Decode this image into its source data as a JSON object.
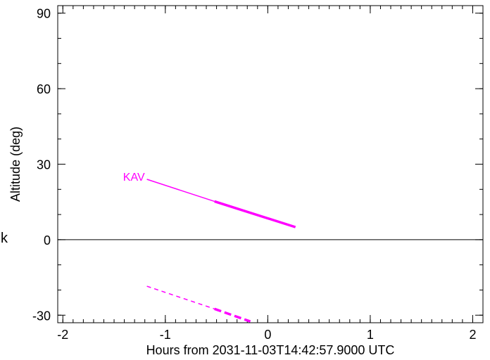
{
  "chart_data": {
    "type": "line",
    "title": "",
    "xlabel": "Hours from 2031-11-03T14:42:57.9000 UTC",
    "ylabel": "Altitude (deg)",
    "xlim": [
      -2.05,
      2.1
    ],
    "ylim": [
      -33,
      93
    ],
    "x_ticks": [
      -2,
      -1,
      0,
      1,
      2
    ],
    "x_tick_labels": [
      "-2",
      "-1",
      "0",
      "1",
      "2"
    ],
    "y_ticks": [
      -30,
      0,
      30,
      60,
      90
    ],
    "y_tick_labels": [
      "-30",
      "0",
      "30",
      "60",
      "90"
    ],
    "y_minor_step": 10,
    "x_minor_step": 0.1,
    "horizon_line": 0,
    "grid": false,
    "series": [
      {
        "name": "KAV",
        "color": "#ff00ff",
        "segments": [
          {
            "style": "solid-thin",
            "x": [
              -1.18,
              -0.52
            ],
            "y": [
              24.0,
              15.2
            ]
          },
          {
            "style": "solid-thick",
            "x": [
              -0.52,
              0.27
            ],
            "y": [
              15.2,
              5.0
            ]
          },
          {
            "style": "dashed-thin",
            "x": [
              -1.18,
              -0.52
            ],
            "y": [
              -18.5,
              -27.5
            ]
          },
          {
            "style": "dashed-thick",
            "x": [
              -0.52,
              -0.17
            ],
            "y": [
              -27.5,
              -32.5
            ]
          }
        ]
      }
    ],
    "side_mark": "k"
  }
}
